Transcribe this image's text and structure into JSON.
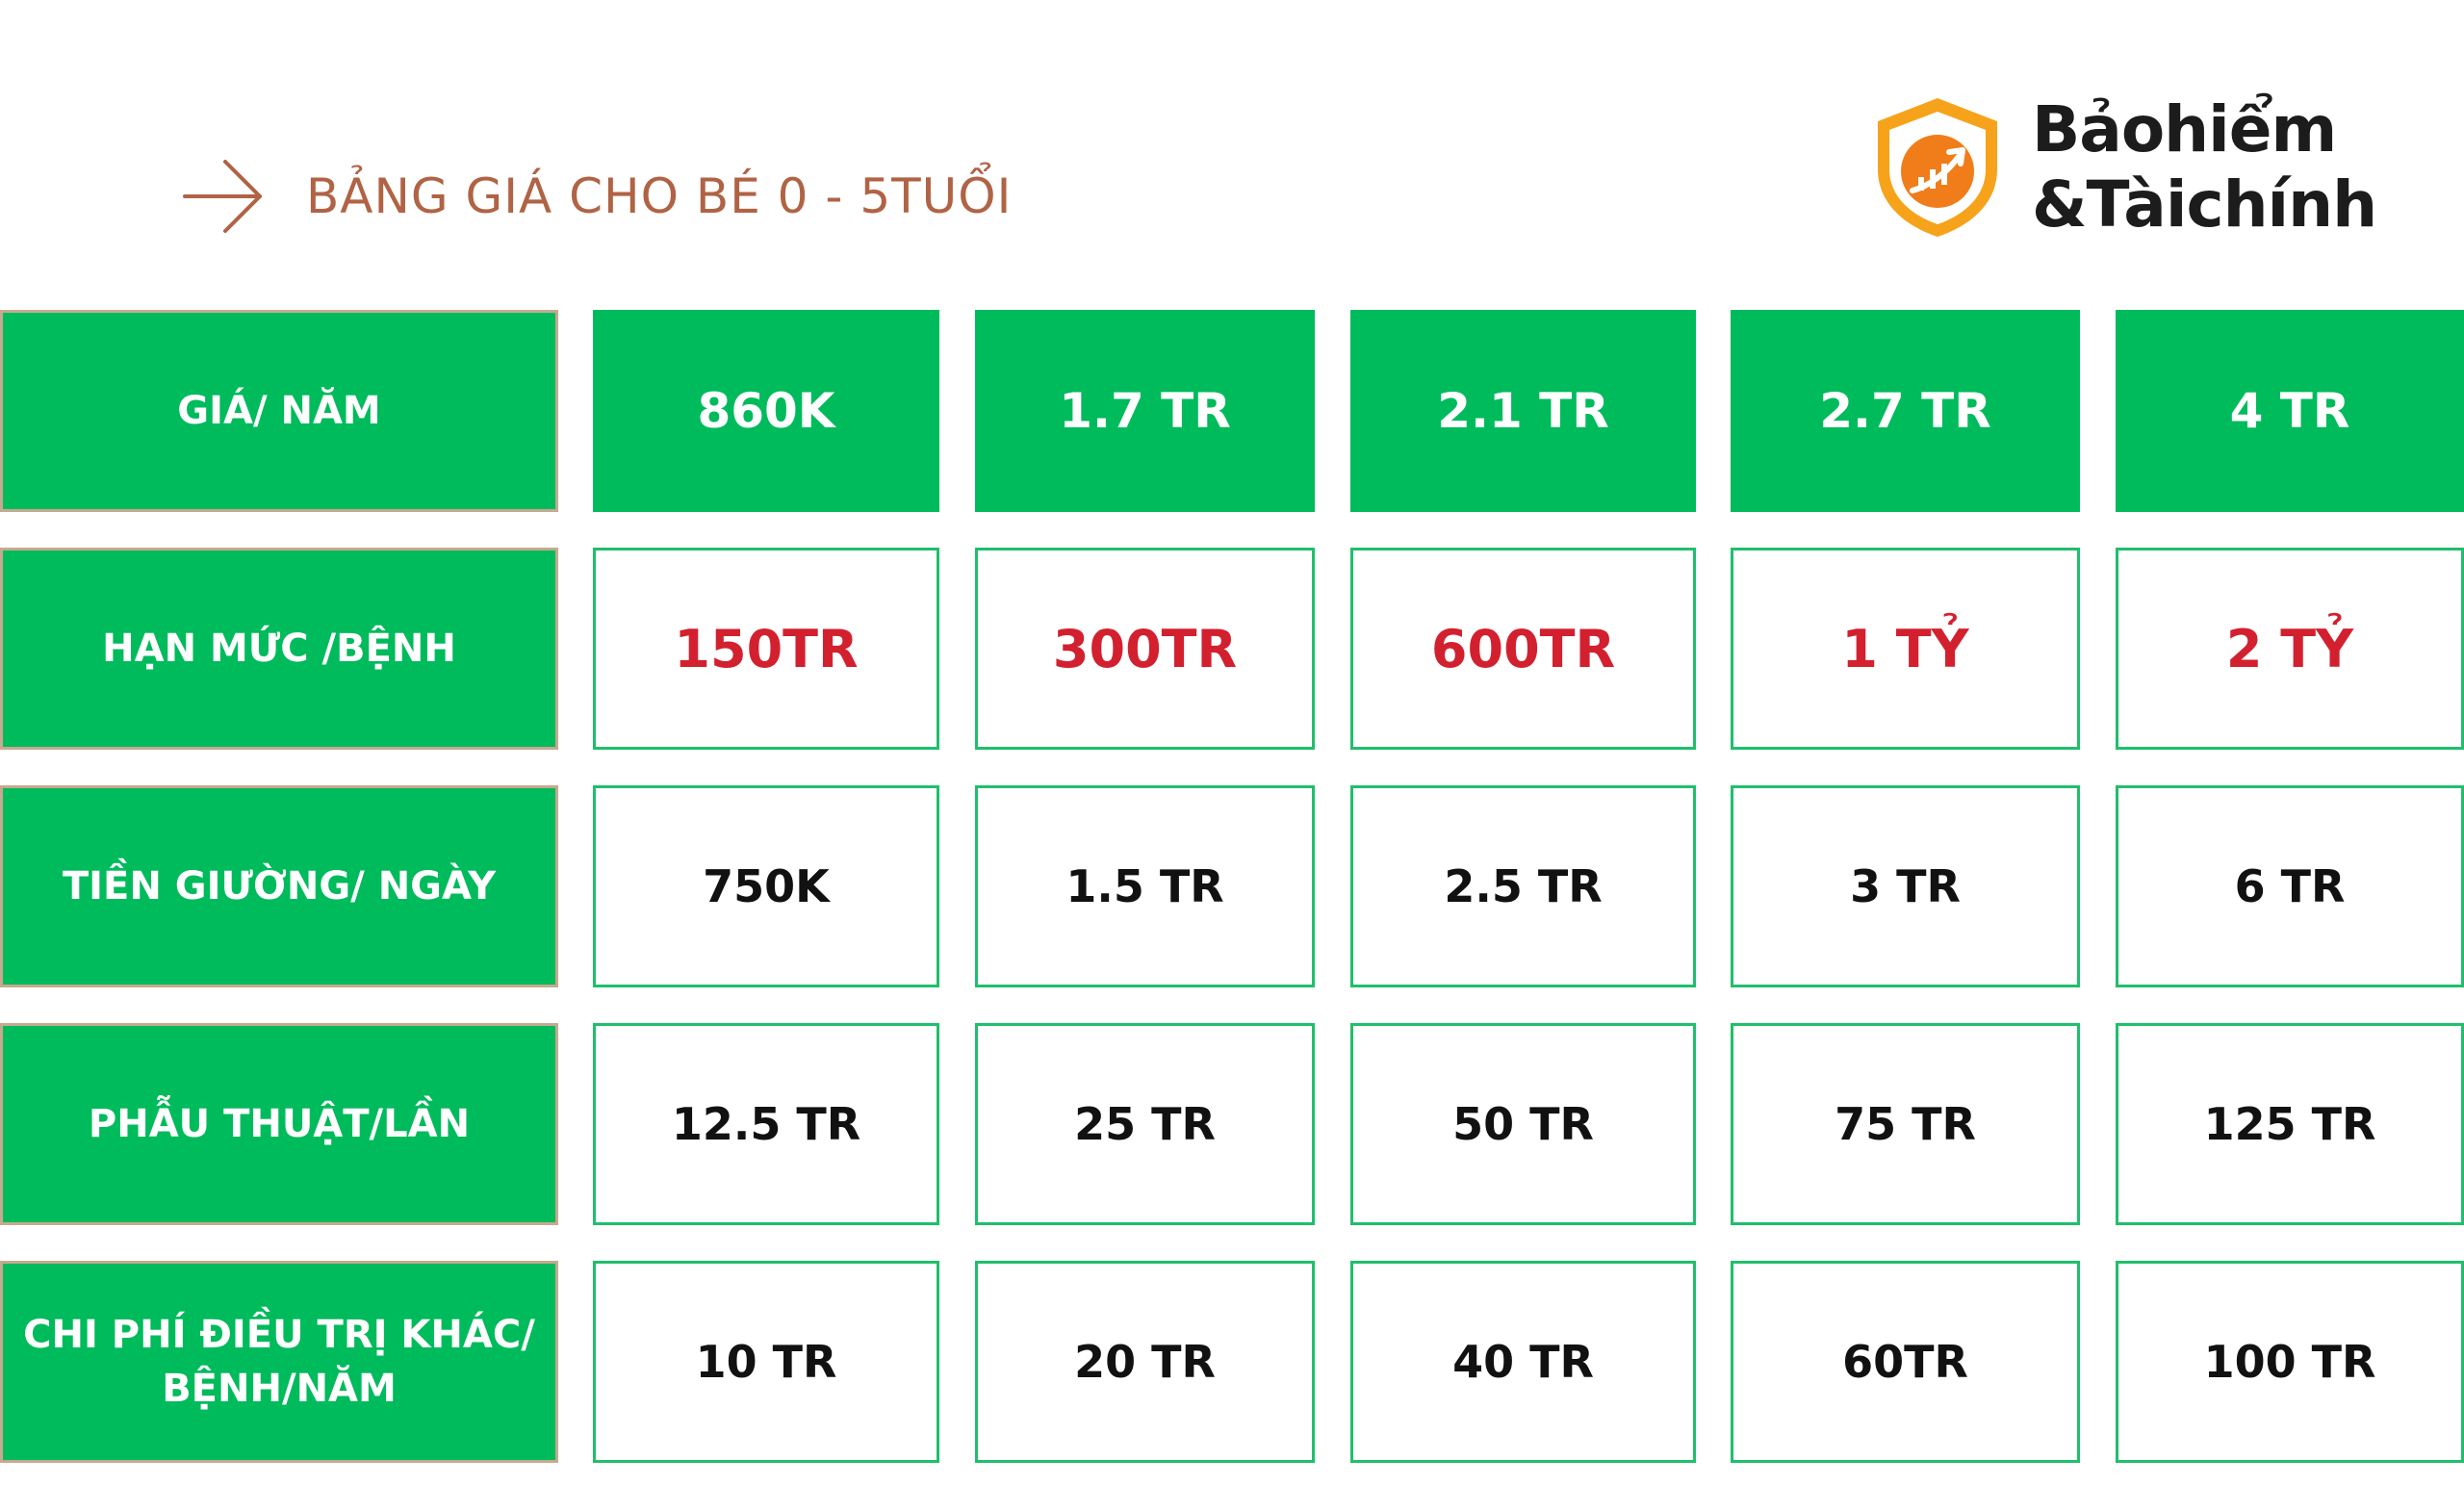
{
  "header": {
    "title": "BẢNG GIÁ CHO BÉ 0 - 5TUỔI",
    "arrow_icon": "arrow-right-icon",
    "accent_color": "#b06345"
  },
  "brand": {
    "line1": "Bảohiểm",
    "line2": "&Tàichính",
    "logo_icon": "shield-growth-icon",
    "logo_colors": [
      "#f6a31b",
      "#f07d19"
    ]
  },
  "colors": {
    "green": "#00bb5c",
    "red_value": "#d3202f",
    "border_green": "#1fbf6b"
  },
  "table": {
    "price_row": {
      "label": "GIÁ/ NĂM",
      "values": [
        "860K",
        "1.7 TR",
        "2.1 TR",
        "2.7 TR",
        "4 TR"
      ]
    },
    "rows": [
      {
        "label": "HẠN MỨC /BỆNH",
        "values": [
          "150TR",
          "300TR",
          "600TR",
          "1 TỶ",
          "2 TỶ"
        ],
        "highlight": true
      },
      {
        "label": "TIỀN GIƯỜNG/ NGÀY",
        "values": [
          "750K",
          "1.5 TR",
          "2.5 TR",
          "3 TR",
          "6 TR"
        ],
        "highlight": false
      },
      {
        "label": "PHẪU THUẬT/LẦN",
        "values": [
          "12.5 TR",
          "25 TR",
          "50 TR",
          "75 TR",
          "125 TR"
        ],
        "highlight": false
      },
      {
        "label": "CHI PHÍ ĐIỀU TRỊ KHÁC/ BỆNH/NĂM",
        "values": [
          "10 TR",
          "20 TR",
          "40 TR",
          "60TR",
          "100 TR"
        ],
        "highlight": false
      }
    ]
  }
}
